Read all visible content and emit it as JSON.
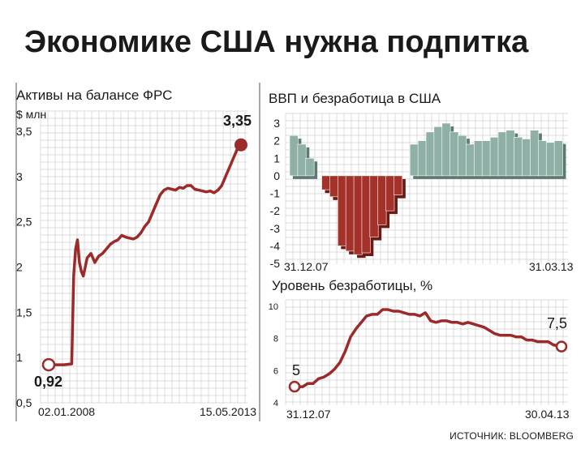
{
  "headline": "Экономике США нужна подпитка",
  "source": "ИСТОЧНИК: BLOOMBERG",
  "colors": {
    "accent": "#9b2a2a",
    "positive": "#8fb0a6",
    "negative": "#a5322a",
    "grid": "#cfcfcf",
    "text": "#1a1a1a"
  },
  "chart_data": [
    {
      "type": "line",
      "title": "Активы на балансе ФРС",
      "ylabel": "$ млн",
      "yticks": [
        "0,5",
        "1",
        "1,5",
        "2",
        "2,5",
        "3",
        "3,5"
      ],
      "ylim": [
        0.5,
        3.5
      ],
      "xlim": [
        0,
        100
      ],
      "x_tick_labels": [
        "02.01.2008",
        "15.05.2013"
      ],
      "annotations": {
        "start": "0,92",
        "end": "3,35"
      },
      "x": [
        0,
        8,
        12,
        13,
        14,
        15,
        16,
        17,
        18,
        20,
        22,
        24,
        26,
        28,
        30,
        32,
        34,
        36,
        38,
        40,
        42,
        44,
        46,
        48,
        50,
        52,
        54,
        56,
        58,
        60,
        62,
        64,
        66,
        68,
        70,
        72,
        74,
        76,
        78,
        80,
        82,
        84,
        86,
        88,
        90,
        92,
        94,
        96,
        98,
        100
      ],
      "y": [
        0.92,
        0.92,
        0.93,
        1.9,
        2.2,
        2.3,
        2.05,
        1.95,
        1.9,
        2.1,
        2.15,
        2.05,
        2.12,
        2.15,
        2.2,
        2.25,
        2.28,
        2.3,
        2.35,
        2.33,
        2.32,
        2.31,
        2.33,
        2.38,
        2.45,
        2.5,
        2.6,
        2.7,
        2.8,
        2.85,
        2.87,
        2.86,
        2.85,
        2.88,
        2.87,
        2.9,
        2.9,
        2.86,
        2.85,
        2.84,
        2.83,
        2.84,
        2.82,
        2.85,
        2.9,
        3.0,
        3.1,
        3.2,
        3.3,
        3.35
      ],
      "grid": true
    },
    {
      "type": "bar",
      "title": "ВВП и безработица в США",
      "yticks": [
        "3",
        "2",
        "1",
        "0",
        "-1",
        "-2",
        "-3",
        "-4",
        "-5"
      ],
      "ylim": [
        -5,
        3
      ],
      "x_tick_labels": [
        "31.12.07",
        "31.03.13"
      ],
      "values": [
        2.3,
        1.8,
        1.0,
        0.0,
        -0.8,
        -1.2,
        -4.0,
        -4.3,
        -4.5,
        -4.4,
        -3.5,
        -2.8,
        -2.0,
        -1.1,
        0.0,
        1.8,
        2.0,
        2.5,
        2.8,
        3.0,
        2.5,
        2.3,
        1.8,
        2.0,
        2.0,
        2.2,
        2.5,
        2.6,
        2.2,
        2.1,
        2.6,
        2.0,
        1.9,
        2.0
      ],
      "grid": true
    },
    {
      "type": "line",
      "title": "Уровень безработицы, %",
      "yticks": [
        "10",
        "8",
        "6",
        "4"
      ],
      "ylim": [
        4,
        10
      ],
      "xlim": [
        0,
        100
      ],
      "x_tick_labels": [
        "31.12.07",
        "30.04.13"
      ],
      "annotations": {
        "start": "5",
        "end": "7,5"
      },
      "x": [
        0,
        3,
        5,
        7,
        9,
        11,
        13,
        15,
        17,
        19,
        21,
        23,
        25,
        27,
        29,
        31,
        33,
        35,
        37,
        39,
        41,
        43,
        45,
        47,
        49,
        51,
        53,
        55,
        57,
        59,
        61,
        63,
        65,
        67,
        69,
        71,
        73,
        75,
        77,
        79,
        81,
        83,
        85,
        87,
        89,
        91,
        93,
        95,
        97,
        100
      ],
      "y": [
        5.0,
        5.0,
        5.2,
        5.2,
        5.5,
        5.6,
        5.8,
        6.1,
        6.5,
        7.2,
        8.1,
        8.6,
        9.0,
        9.4,
        9.5,
        9.5,
        9.8,
        9.8,
        9.7,
        9.7,
        9.6,
        9.5,
        9.5,
        9.4,
        9.6,
        9.1,
        9.0,
        9.1,
        9.1,
        9.0,
        9.0,
        8.9,
        9.0,
        8.9,
        8.8,
        8.7,
        8.5,
        8.3,
        8.2,
        8.2,
        8.2,
        8.1,
        8.1,
        7.9,
        7.9,
        7.8,
        7.8,
        7.8,
        7.6,
        7.5
      ],
      "grid": true
    }
  ]
}
